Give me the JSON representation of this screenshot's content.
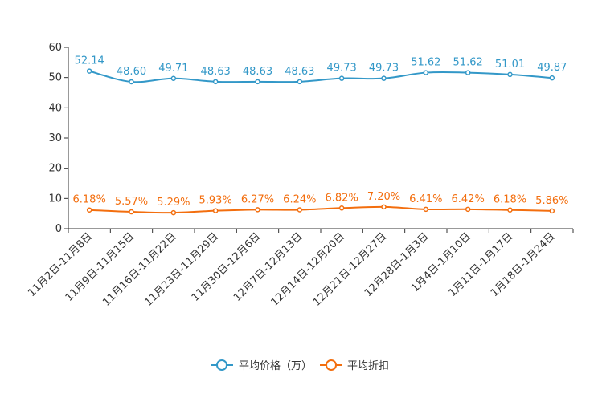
{
  "chart_data": {
    "type": "line",
    "categories": [
      "11月2日-11月8日",
      "11月9日-11月15日",
      "11月16日-11月22日",
      "11月23日-11月29日",
      "11月30日-12月6日",
      "12月7日-12月13日",
      "12月14日-12月20日",
      "12月21日-12月27日",
      "12月28日-1月3日",
      "1月4日-1月10日",
      "1月11日-1月17日",
      "1月18日-1月24日"
    ],
    "series": [
      {
        "name": "平均价格（万）",
        "color": "#3398c8",
        "values": [
          52.14,
          48.6,
          49.71,
          48.63,
          48.63,
          48.63,
          49.73,
          49.73,
          51.62,
          51.62,
          51.01,
          49.87
        ],
        "labels": [
          "52.14",
          "48.60",
          "49.71",
          "48.63",
          "48.63",
          "48.63",
          "49.73",
          "49.73",
          "51.62",
          "51.62",
          "51.01",
          "49.87"
        ]
      },
      {
        "name": "平均折扣",
        "color": "#f36e0e",
        "values": [
          6.18,
          5.57,
          5.29,
          5.93,
          6.27,
          6.24,
          6.82,
          7.2,
          6.41,
          6.42,
          6.18,
          5.86
        ],
        "labels": [
          "6.18%",
          "5.57%",
          "5.29%",
          "5.93%",
          "6.27%",
          "6.24%",
          "6.82%",
          "7.20%",
          "6.41%",
          "6.42%",
          "6.18%",
          "5.86%"
        ]
      }
    ],
    "ylim": [
      0,
      60
    ],
    "yticks": [
      "0",
      "10",
      "20",
      "30",
      "40",
      "50",
      "60"
    ],
    "title": "",
    "xlabel": "",
    "ylabel": "",
    "legend": "bottom-center"
  }
}
